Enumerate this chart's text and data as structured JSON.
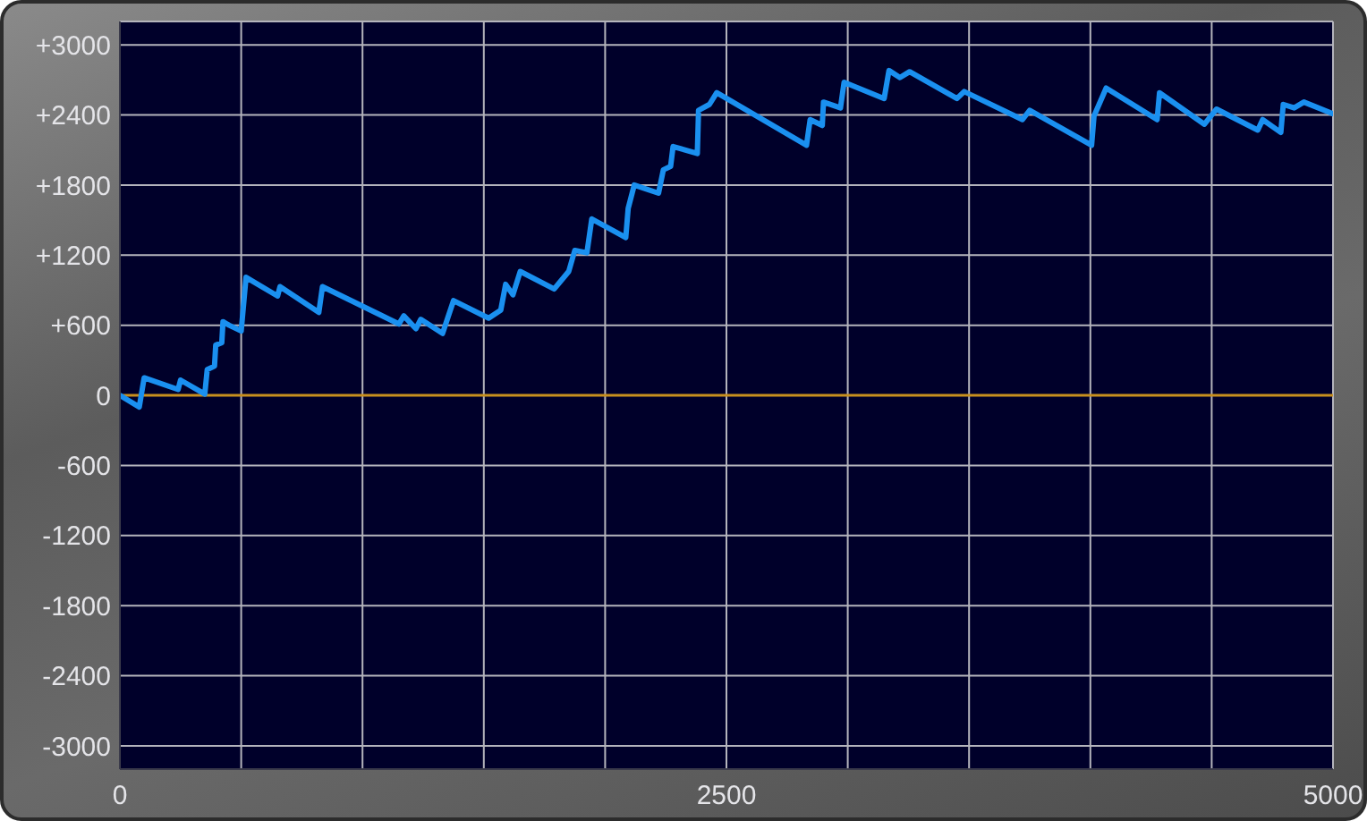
{
  "chart_data": {
    "type": "line",
    "x": [
      0,
      80,
      100,
      240,
      250,
      350,
      360,
      390,
      395,
      420,
      425,
      450,
      500,
      520,
      650,
      660,
      820,
      835,
      1150,
      1170,
      1220,
      1240,
      1330,
      1375,
      1520,
      1570,
      1590,
      1620,
      1650,
      1790,
      1850,
      1875,
      1925,
      1945,
      2085,
      2095,
      2120,
      2220,
      2240,
      2270,
      2280,
      2380,
      2385,
      2430,
      2460,
      2830,
      2845,
      2895,
      2900,
      2970,
      2985,
      3150,
      3170,
      3215,
      3255,
      3450,
      3480,
      3720,
      3750,
      4005,
      4015,
      4065,
      4275,
      4285,
      4470,
      4520,
      4690,
      4710,
      4785,
      4795,
      4840,
      4880,
      5000
    ],
    "series": [
      {
        "color": "#1a90f0",
        "values": [
          0,
          -100,
          150,
          50,
          130,
          10,
          220,
          250,
          430,
          450,
          630,
          600,
          550,
          1010,
          850,
          930,
          710,
          930,
          610,
          680,
          570,
          650,
          530,
          810,
          660,
          730,
          950,
          860,
          1060,
          910,
          1060,
          1240,
          1220,
          1510,
          1350,
          1600,
          1800,
          1730,
          1930,
          1960,
          2130,
          2070,
          2440,
          2490,
          2590,
          2140,
          2360,
          2310,
          2510,
          2460,
          2680,
          2540,
          2780,
          2720,
          2770,
          2540,
          2600,
          2360,
          2440,
          2140,
          2390,
          2630,
          2360,
          2590,
          2320,
          2450,
          2270,
          2360,
          2250,
          2490,
          2460,
          2510,
          2410
        ]
      }
    ],
    "xlim": [
      0,
      5000
    ],
    "xticks": [
      0,
      {
        "value": 500,
        "label": null
      },
      {
        "value": 1000,
        "label": null
      },
      {
        "value": 1500,
        "label": null
      },
      {
        "value": 2000,
        "label": null
      },
      2500,
      {
        "value": 3000,
        "label": null
      },
      {
        "value": 3500,
        "label": null
      },
      {
        "value": 4000,
        "label": null
      },
      {
        "value": 4500,
        "label": null
      },
      5000
    ],
    "ylim": [
      -3200,
      3200
    ],
    "yticks": [
      -3000,
      -2400,
      -1800,
      -1200,
      -600,
      0,
      {
        "value": 600,
        "label": "+600"
      },
      {
        "value": 1200,
        "label": "+1200"
      },
      {
        "value": 1800,
        "label": "+1800"
      },
      {
        "value": 2400,
        "label": "+2400"
      },
      {
        "value": 3000,
        "label": "+3000"
      }
    ],
    "grid": true,
    "marker": "none",
    "line_style": "solid",
    "ref_lines": [
      {
        "axis": "y",
        "value": 0,
        "color": "#c8901e"
      }
    ]
  }
}
